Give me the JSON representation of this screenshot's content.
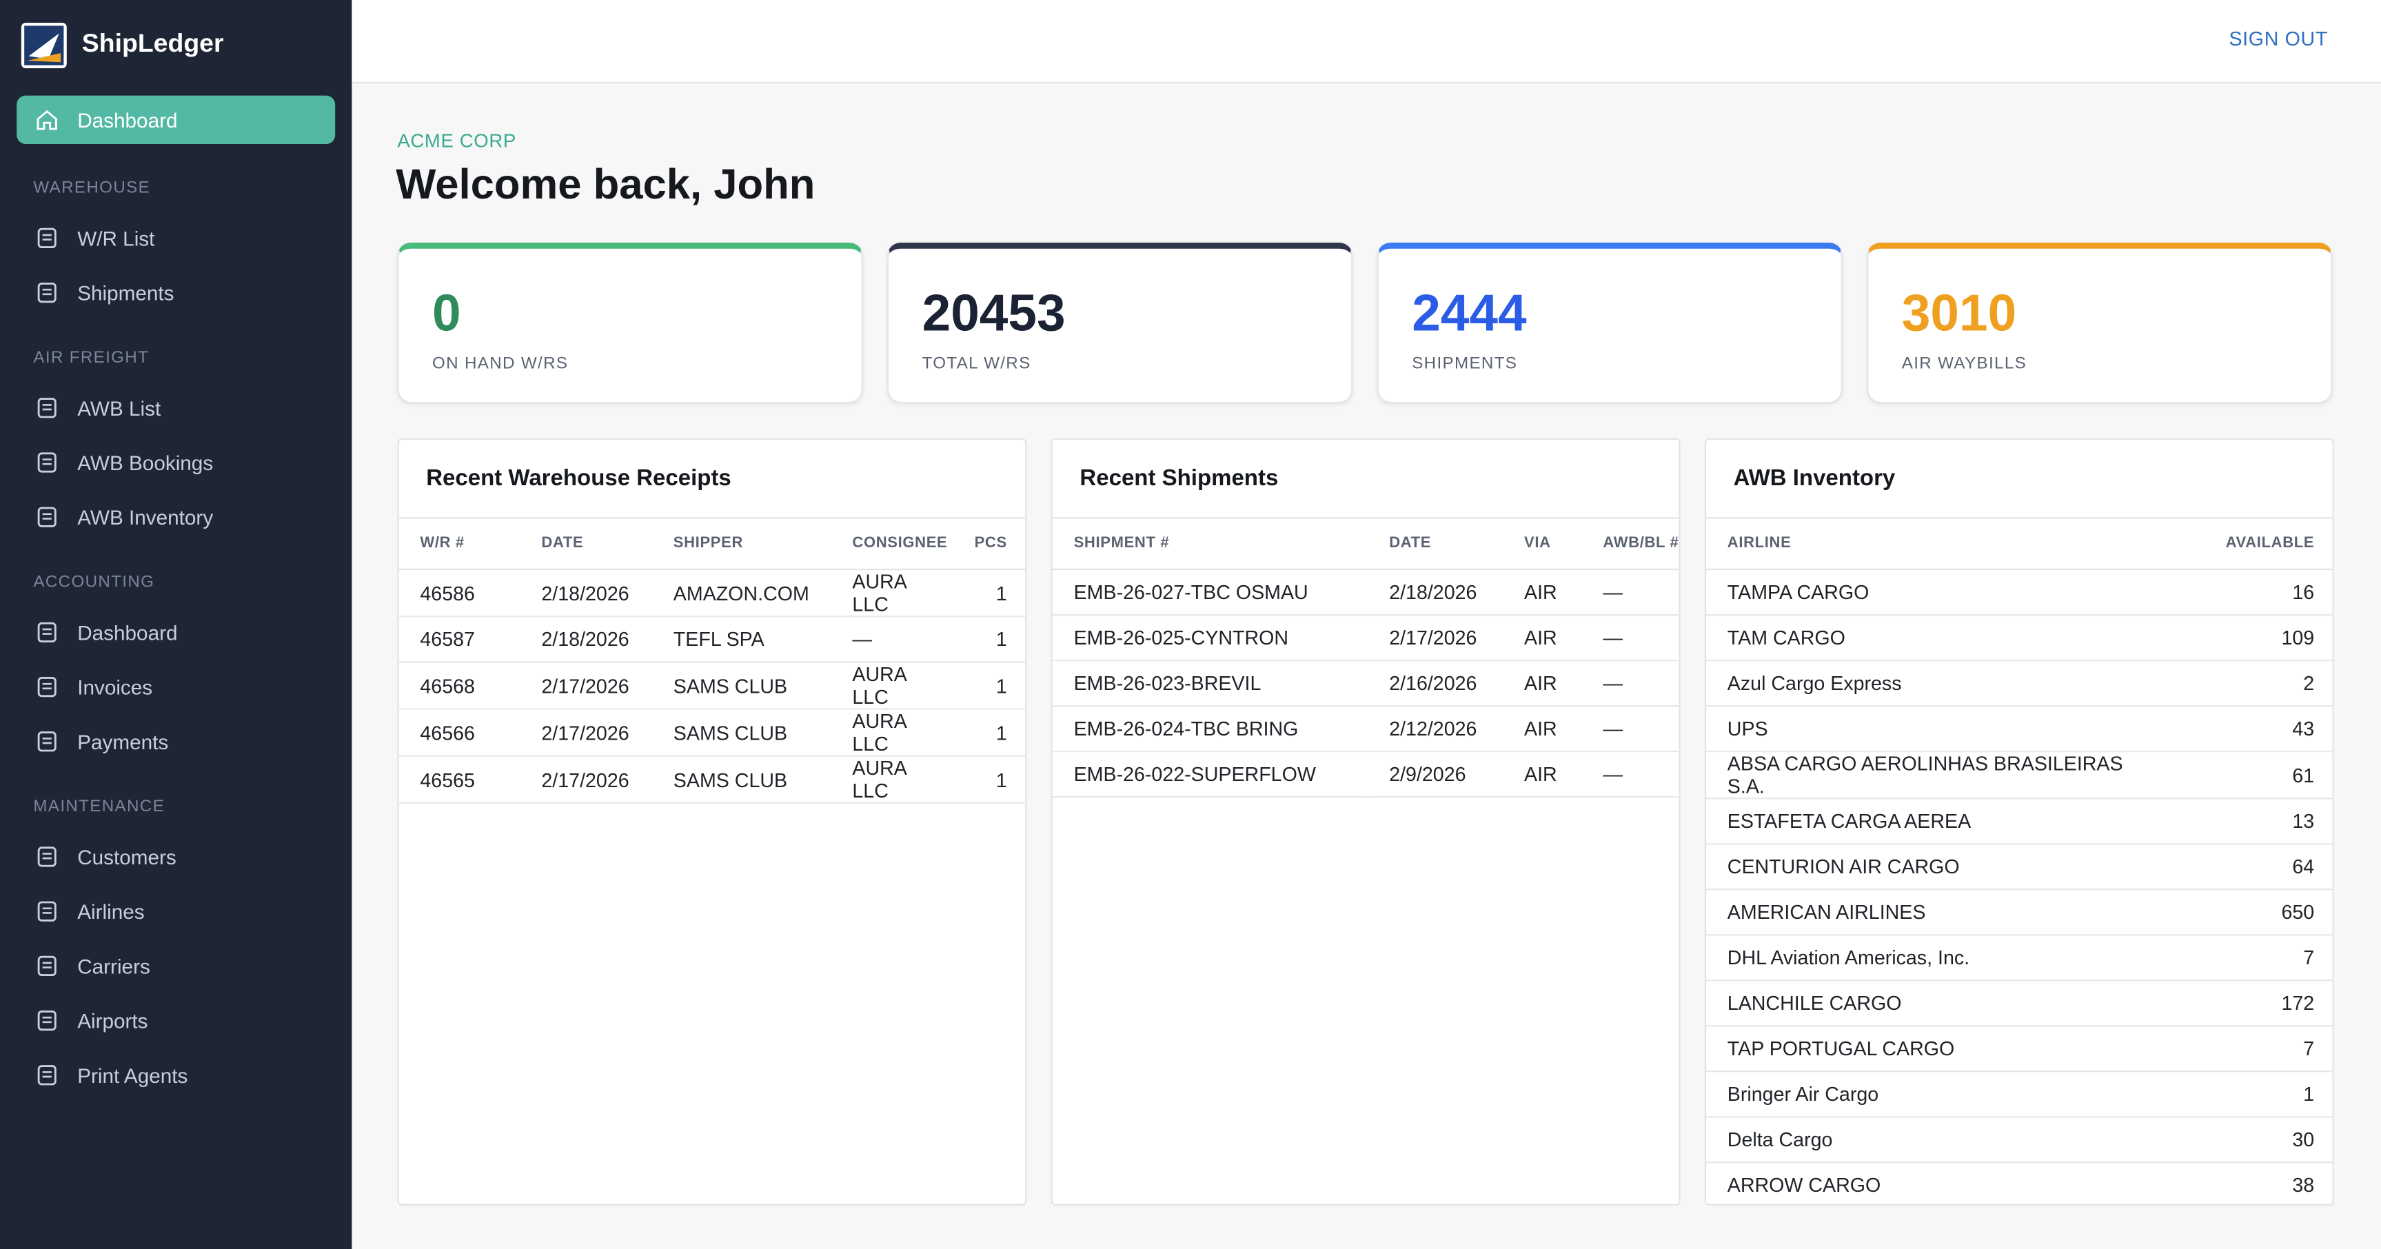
{
  "brand": "ShipLedger",
  "nav": {
    "active": "Dashboard",
    "sections": [
      {
        "title": "WAREHOUSE",
        "items": [
          "W/R List",
          "Shipments"
        ]
      },
      {
        "title": "AIR FREIGHT",
        "items": [
          "AWB List",
          "AWB Bookings",
          "AWB Inventory"
        ]
      },
      {
        "title": "ACCOUNTING",
        "items": [
          "Dashboard",
          "Invoices",
          "Payments"
        ]
      },
      {
        "title": "MAINTENANCE",
        "items": [
          "Customers",
          "Airlines",
          "Carriers",
          "Airports",
          "Print Agents"
        ]
      }
    ]
  },
  "header": {
    "sign_out": "SIGN OUT"
  },
  "company": "ACME CORP",
  "greeting": "Welcome back, John",
  "stats": [
    {
      "value": 0,
      "label": "ON HAND W/RS",
      "color": "#2f8a5c",
      "accent": "#48bb78"
    },
    {
      "value": 20453,
      "label": "TOTAL W/RS",
      "color": "#1a2233",
      "accent": "#2d3748"
    },
    {
      "value": 2444,
      "label": "SHIPMENTS",
      "color": "#2b5ce6",
      "accent": "#3b7bef"
    },
    {
      "value": 3010,
      "label": "AIR WAYBILLS",
      "color": "#f0a020",
      "accent": "#f0a020"
    }
  ],
  "tables": [
    {
      "title": "Recent Warehouse Receipts",
      "columns": [
        "W/R #",
        "DATE",
        "SHIPPER",
        "CONSIGNEE",
        "PCS"
      ],
      "rows": [
        [
          "46586",
          "2/18/2026",
          "AMAZON.COM",
          "AURA LLC",
          "1"
        ],
        [
          "46587",
          "2/18/2026",
          "TEFL SPA",
          "—",
          "1"
        ],
        [
          "46568",
          "2/17/2026",
          "SAMS CLUB",
          "AURA LLC",
          "1"
        ],
        [
          "46566",
          "2/17/2026",
          "SAMS CLUB",
          "AURA LLC",
          "1"
        ],
        [
          "46565",
          "2/17/2026",
          "SAMS CLUB",
          "AURA LLC",
          "1"
        ]
      ]
    },
    {
      "title": "Recent Shipments",
      "columns": [
        "SHIPMENT #",
        "DATE",
        "VIA",
        "AWB/BL #"
      ],
      "rows": [
        [
          "EMB-26-027-TBC OSMAU",
          "2/18/2026",
          "AIR",
          "—"
        ],
        [
          "EMB-26-025-CYNTRON",
          "2/17/2026",
          "AIR",
          "—"
        ],
        [
          "EMB-26-023-BREVIL",
          "2/16/2026",
          "AIR",
          "—"
        ],
        [
          "EMB-26-024-TBC BRING",
          "2/12/2026",
          "AIR",
          "—"
        ],
        [
          "EMB-26-022-SUPERFLOW",
          "2/9/2026",
          "AIR",
          "—"
        ]
      ]
    },
    {
      "title": "AWB Inventory",
      "columns": [
        "AIRLINE",
        "AVAILABLE"
      ],
      "rows": [
        [
          "TAMPA CARGO",
          "16"
        ],
        [
          "TAM CARGO",
          "109"
        ],
        [
          "Azul Cargo Express",
          "2"
        ],
        [
          "UPS",
          "43"
        ],
        [
          "ABSA CARGO AEROLINHAS BRASILEIRAS S.A.",
          "61"
        ],
        [
          "ESTAFETA CARGA AEREA",
          "13"
        ],
        [
          "CENTURION AIR CARGO",
          "64"
        ],
        [
          "AMERICAN AIRLINES",
          "650"
        ],
        [
          "DHL Aviation Americas, Inc.",
          "7"
        ],
        [
          "LANCHILE CARGO",
          "172"
        ],
        [
          "TAP PORTUGAL CARGO",
          "7"
        ],
        [
          "Bringer Air Cargo",
          "1"
        ],
        [
          "Delta Cargo",
          "30"
        ],
        [
          "ARROW CARGO",
          "38"
        ]
      ]
    }
  ]
}
